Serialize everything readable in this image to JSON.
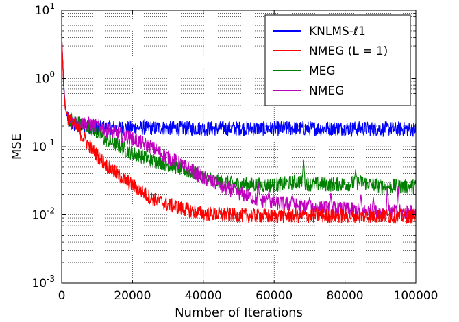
{
  "chart_data": {
    "type": "line",
    "xlabel": "Number of Iterations",
    "ylabel": "MSE",
    "xlim": [
      0,
      100000
    ],
    "ylim": [
      0.001,
      10
    ],
    "yscale": "log",
    "grid": true,
    "legend_position": "top-right",
    "x_ticks": [
      {
        "value": 0,
        "label": "0"
      },
      {
        "value": 20000,
        "label": "20000"
      },
      {
        "value": 40000,
        "label": "40000"
      },
      {
        "value": 60000,
        "label": "60000"
      },
      {
        "value": 80000,
        "label": "80000"
      },
      {
        "value": 100000,
        "label": "100000"
      }
    ],
    "y_ticks": [
      {
        "value": 0.001,
        "base": "10",
        "exp": "-3"
      },
      {
        "value": 0.01,
        "base": "10",
        "exp": "-2"
      },
      {
        "value": 0.1,
        "base": "10",
        "exp": "-1"
      },
      {
        "value": 1,
        "base": "10",
        "exp": "0"
      },
      {
        "value": 10,
        "base": "10",
        "exp": "1"
      }
    ],
    "series": [
      {
        "name": "KNLMS-ℓ1",
        "color": "#0000ff",
        "x": [
          0,
          500,
          1000,
          1500,
          2000,
          3000,
          5000,
          10000,
          20000,
          40000,
          60000,
          80000,
          100000
        ],
        "y": [
          4.5,
          1.0,
          0.4,
          0.28,
          0.24,
          0.21,
          0.2,
          0.19,
          0.19,
          0.185,
          0.185,
          0.185,
          0.18
        ]
      },
      {
        "name": "NMEG (L = 1)",
        "color": "#ff0000",
        "x": [
          0,
          500,
          1000,
          2000,
          4000,
          6000,
          8000,
          10000,
          12000,
          15000,
          20000,
          25000,
          30000,
          35000,
          40000,
          50000,
          60000,
          80000,
          100000
        ],
        "y": [
          4.5,
          0.9,
          0.36,
          0.25,
          0.19,
          0.14,
          0.1,
          0.075,
          0.058,
          0.042,
          0.027,
          0.018,
          0.014,
          0.012,
          0.0105,
          0.0098,
          0.0097,
          0.0097,
          0.0095
        ]
      },
      {
        "name": "MEG",
        "color": "#008000",
        "x": [
          0,
          500,
          1000,
          2000,
          5000,
          8000,
          10000,
          12000,
          15000,
          20000,
          25000,
          30000,
          35000,
          40000,
          42000,
          45000,
          50000,
          60000,
          68000,
          70000,
          80000,
          85000,
          90000,
          100000
        ],
        "y": [
          4.5,
          0.9,
          0.36,
          0.25,
          0.22,
          0.2,
          0.16,
          0.13,
          0.11,
          0.08,
          0.065,
          0.055,
          0.045,
          0.036,
          0.032,
          0.03,
          0.028,
          0.027,
          0.031,
          0.028,
          0.028,
          0.03,
          0.026,
          0.026
        ]
      },
      {
        "name": "NMEG",
        "color": "#bf00bf",
        "x": [
          0,
          500,
          1000,
          2000,
          5000,
          10000,
          15000,
          20000,
          25000,
          30000,
          35000,
          40000,
          45000,
          50000,
          55000,
          60000,
          70000,
          80000,
          90000,
          100000
        ],
        "y": [
          4.5,
          0.9,
          0.36,
          0.26,
          0.23,
          0.2,
          0.16,
          0.13,
          0.1,
          0.07,
          0.05,
          0.035,
          0.026,
          0.021,
          0.017,
          0.015,
          0.013,
          0.012,
          0.011,
          0.011
        ]
      }
    ],
    "spikes": {
      "MEG": [
        [
          42000,
          0.042
        ],
        [
          68300,
          0.065
        ],
        [
          83000,
          0.046
        ]
      ],
      "NMEG": [
        [
          44000,
          0.028
        ],
        [
          49000,
          0.025
        ],
        [
          55500,
          0.03
        ],
        [
          58500,
          0.022
        ],
        [
          65000,
          0.019
        ],
        [
          70000,
          0.018
        ],
        [
          76000,
          0.021
        ],
        [
          84500,
          0.02
        ],
        [
          88000,
          0.018
        ],
        [
          92000,
          0.026
        ],
        [
          95000,
          0.026
        ]
      ]
    }
  }
}
